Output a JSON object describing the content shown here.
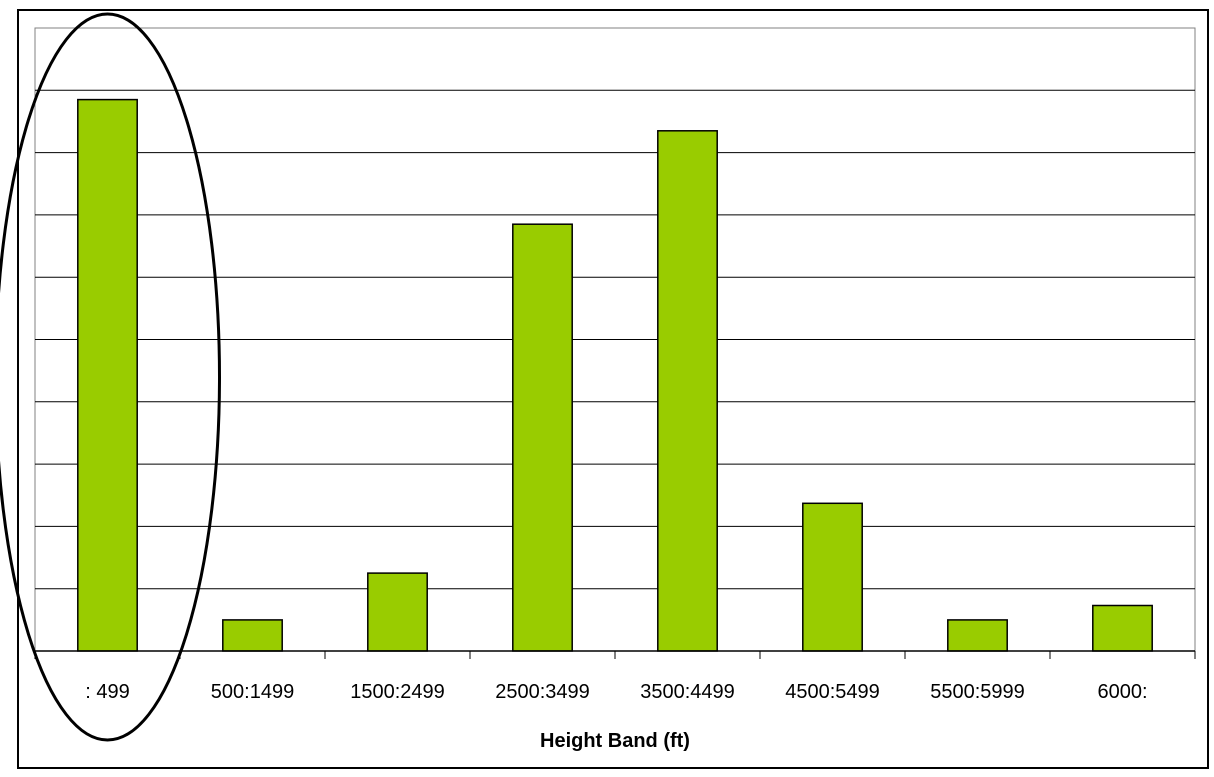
{
  "chart_data": {
    "type": "bar",
    "title": "",
    "xlabel": "Height Band (ft)",
    "ylabel": "",
    "categories": [
      ": 499",
      "500:1499",
      "1500:2499",
      "2500:3499",
      "3500:4499",
      "4500:5499",
      "5500:5999",
      "6000:"
    ],
    "values": [
      88.5,
      5,
      12.5,
      68.5,
      83.5,
      23.7,
      5,
      7.3
    ],
    "ylim": [
      0,
      100
    ],
    "y_tick_count": 10,
    "y_tick_labels_visible": false,
    "grid": true,
    "legend": "none",
    "bar_color": "#99cc00",
    "bar_edge_color": "#000000",
    "highlight": {
      "shape": "ellipse",
      "category": ": 499",
      "color": "#000000"
    }
  }
}
